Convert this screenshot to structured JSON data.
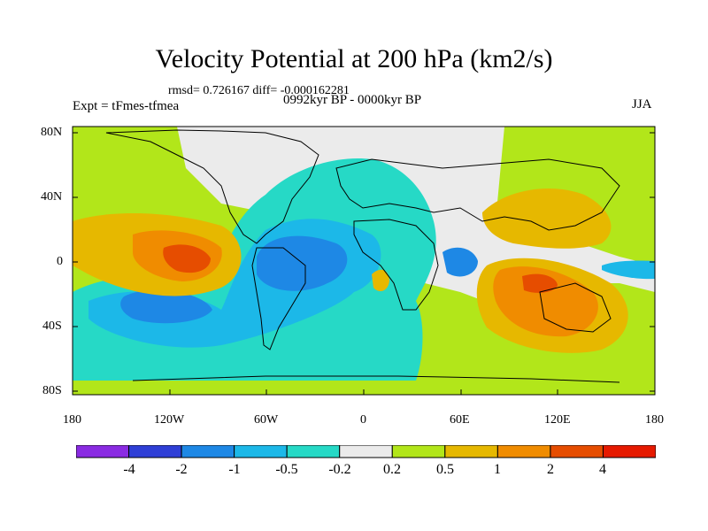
{
  "title": "Velocity Potential at 200 hPa (km2/s)",
  "subtitle": "rmsd= 0.726167 diff= -0.000162281",
  "left_label": "Expt = tFmes-tfmea",
  "center_label": "0992kyr BP - 0000kyr BP",
  "right_label": "JJA",
  "lat_ticks": [
    "80N",
    "40N",
    "0",
    "40S",
    "80S"
  ],
  "lon_ticks": [
    "180",
    "120W",
    "60W",
    "0",
    "60E",
    "120E",
    "180"
  ],
  "colorbar": {
    "colors": [
      "#8a2be2",
      "#2f3fd6",
      "#1e88e5",
      "#1cb8e8",
      "#26d9c6",
      "#ebebeb",
      "#b2e61a",
      "#e6b800",
      "#f08c00",
      "#e64d00",
      "#e61a00"
    ],
    "labels": [
      "-4",
      "-2",
      "-1",
      "-0.5",
      "-0.2",
      "0.2",
      "0.5",
      "1",
      "2",
      "4"
    ]
  }
}
